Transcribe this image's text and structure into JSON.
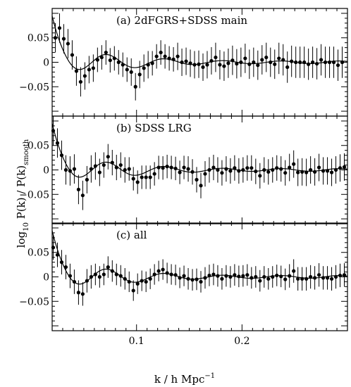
{
  "figure": {
    "xlabel": "k / h Mpc",
    "xlabel_sup": "−1",
    "ylabel": "log",
    "ylabel_sub1": "10",
    "ylabel_mid": " P(k) / P(k)",
    "ylabel_sub2": "smooth"
  },
  "chart_data": [
    {
      "type": "scatter",
      "title": "(a) 2dFGRS+SDSS main",
      "xlim": [
        0.02,
        0.3
      ],
      "ylim": [
        -0.11,
        0.11
      ],
      "x_ticks": [
        0.1,
        0.2
      ],
      "x_tick_labels": [
        "0.1",
        "0.2"
      ],
      "y_ticks": [
        0.05,
        0,
        -0.05
      ],
      "y_tick_labels": [
        "0.05",
        "0",
        "−0.05"
      ],
      "series": [
        {
          "x": [
            0.023,
            0.027,
            0.031,
            0.035,
            0.039,
            0.043,
            0.047,
            0.051,
            0.055,
            0.059,
            0.063,
            0.067,
            0.071,
            0.075,
            0.079,
            0.083,
            0.087,
            0.091,
            0.095,
            0.099,
            0.103,
            0.107,
            0.111,
            0.115,
            0.119,
            0.123,
            0.127,
            0.131,
            0.135,
            0.139,
            0.143,
            0.147,
            0.151,
            0.155,
            0.159,
            0.163,
            0.167,
            0.171,
            0.175,
            0.179,
            0.183,
            0.187,
            0.191,
            0.195,
            0.199,
            0.203,
            0.207,
            0.211,
            0.215,
            0.219,
            0.223,
            0.227,
            0.231,
            0.235,
            0.239,
            0.243,
            0.247,
            0.251,
            0.255,
            0.259,
            0.263,
            0.267,
            0.271,
            0.275,
            0.279,
            0.283,
            0.287,
            0.291,
            0.295
          ],
          "y": [
            0.05,
            0.07,
            0.048,
            0.038,
            0.015,
            -0.018,
            -0.04,
            -0.028,
            -0.015,
            -0.012,
            0.005,
            0.01,
            0.02,
            0.004,
            0.008,
            0.0,
            -0.005,
            -0.015,
            -0.02,
            -0.05,
            -0.025,
            -0.012,
            -0.005,
            -0.002,
            0.012,
            0.02,
            0.012,
            0.008,
            0.006,
            0.012,
            0.0,
            0.002,
            -0.002,
            -0.005,
            -0.004,
            -0.01,
            -0.005,
            0.003,
            0.01,
            -0.005,
            -0.008,
            -0.002,
            0.004,
            -0.003,
            0.0,
            0.008,
            -0.004,
            0.0,
            -0.006,
            0.005,
            0.01,
            0.0,
            -0.004,
            0.008,
            0.005,
            -0.01,
            0.002,
            0.0,
            0.0,
            0.0,
            -0.004,
            0.0,
            -0.003,
            0.005,
            0.0,
            0.0,
            0.0,
            -0.006,
            0.0
          ],
          "err": [
            0.03,
            0.03,
            0.03,
            0.03,
            0.03,
            0.03,
            0.03,
            0.028,
            0.028,
            0.028,
            0.025,
            0.025,
            0.025,
            0.025,
            0.025,
            0.025,
            0.025,
            0.025,
            0.028,
            0.028,
            0.028,
            0.028,
            0.028,
            0.025,
            0.025,
            0.025,
            0.025,
            0.025,
            0.025,
            0.028,
            0.028,
            0.028,
            0.028,
            0.028,
            0.028,
            0.028,
            0.028,
            0.028,
            0.03,
            0.03,
            0.03,
            0.03,
            0.03,
            0.03,
            0.03,
            0.03,
            0.03,
            0.03,
            0.03,
            0.03,
            0.03,
            0.03,
            0.03,
            0.032,
            0.032,
            0.032,
            0.032,
            0.032,
            0.032,
            0.032,
            0.032,
            0.032,
            0.032,
            0.032,
            0.032,
            0.032,
            0.032,
            0.032,
            0.032
          ]
        }
      ]
    },
    {
      "type": "scatter",
      "title": "(b) SDSS LRG",
      "xlim": [
        0.02,
        0.3
      ],
      "ylim": [
        -0.11,
        0.11
      ],
      "x_ticks": [
        0.1,
        0.2
      ],
      "x_tick_labels": [
        "0.1",
        "0.2"
      ],
      "y_ticks": [
        0.05,
        0,
        -0.05
      ],
      "y_tick_labels": [
        "0.05",
        "0",
        "−0.05"
      ],
      "series": [
        {
          "x": [
            0.021,
            0.025,
            0.029,
            0.033,
            0.037,
            0.041,
            0.045,
            0.049,
            0.053,
            0.057,
            0.061,
            0.065,
            0.069,
            0.073,
            0.077,
            0.081,
            0.085,
            0.089,
            0.093,
            0.097,
            0.101,
            0.105,
            0.109,
            0.113,
            0.117,
            0.121,
            0.125,
            0.129,
            0.133,
            0.137,
            0.141,
            0.145,
            0.149,
            0.153,
            0.157,
            0.161,
            0.165,
            0.169,
            0.173,
            0.177,
            0.181,
            0.185,
            0.189,
            0.193,
            0.197,
            0.201,
            0.205,
            0.209,
            0.213,
            0.217,
            0.221,
            0.225,
            0.229,
            0.233,
            0.237,
            0.241,
            0.245,
            0.249,
            0.253,
            0.257,
            0.261,
            0.265,
            0.269,
            0.273,
            0.277,
            0.281,
            0.285,
            0.289,
            0.293,
            0.297
          ],
          "y": [
            0.08,
            0.055,
            0.03,
            0.0,
            -0.002,
            0.002,
            -0.04,
            -0.052,
            -0.02,
            0.002,
            0.008,
            -0.005,
            0.01,
            0.027,
            0.015,
            0.005,
            0.01,
            0.0,
            0.002,
            -0.018,
            -0.025,
            -0.015,
            -0.015,
            -0.015,
            -0.008,
            0.005,
            0.004,
            0.007,
            0.005,
            0.003,
            -0.005,
            0.005,
            0.002,
            -0.004,
            -0.02,
            -0.032,
            -0.008,
            0.0,
            0.005,
            0.0,
            -0.006,
            0.002,
            -0.002,
            0.004,
            -0.002,
            0.0,
            0.004,
            0.004,
            -0.003,
            -0.012,
            0.0,
            -0.004,
            0.0,
            0.004,
            0.002,
            -0.006,
            0.005,
            0.012,
            -0.005,
            -0.004,
            -0.005,
            0.0,
            -0.004,
            0.005,
            -0.002,
            -0.002,
            -0.005,
            0.0,
            0.004,
            0.006
          ],
          "err": [
            0.03,
            0.03,
            0.03,
            0.03,
            0.03,
            0.03,
            0.03,
            0.03,
            0.028,
            0.028,
            0.028,
            0.028,
            0.026,
            0.026,
            0.026,
            0.026,
            0.026,
            0.026,
            0.024,
            0.024,
            0.024,
            0.024,
            0.024,
            0.024,
            0.024,
            0.024,
            0.024,
            0.024,
            0.024,
            0.024,
            0.024,
            0.024,
            0.026,
            0.026,
            0.026,
            0.026,
            0.026,
            0.026,
            0.026,
            0.026,
            0.026,
            0.026,
            0.026,
            0.026,
            0.026,
            0.026,
            0.026,
            0.026,
            0.026,
            0.026,
            0.026,
            0.026,
            0.026,
            0.026,
            0.026,
            0.026,
            0.028,
            0.028,
            0.028,
            0.028,
            0.028,
            0.028,
            0.028,
            0.028,
            0.028,
            0.028,
            0.028,
            0.028,
            0.028,
            0.028
          ]
        }
      ]
    },
    {
      "type": "scatter",
      "title": "(c) all",
      "xlim": [
        0.02,
        0.3
      ],
      "ylim": [
        -0.11,
        0.11
      ],
      "x_ticks": [
        0.1,
        0.2
      ],
      "x_tick_labels": [
        "0.1",
        "0.2"
      ],
      "y_ticks": [
        0.05,
        0,
        -0.05
      ],
      "y_tick_labels": [
        "0.05",
        "0",
        "−0.05"
      ],
      "series": [
        {
          "x": [
            0.021,
            0.025,
            0.029,
            0.033,
            0.037,
            0.041,
            0.045,
            0.049,
            0.053,
            0.057,
            0.061,
            0.065,
            0.069,
            0.073,
            0.077,
            0.081,
            0.085,
            0.089,
            0.093,
            0.097,
            0.101,
            0.105,
            0.109,
            0.113,
            0.117,
            0.121,
            0.125,
            0.129,
            0.133,
            0.137,
            0.141,
            0.145,
            0.149,
            0.153,
            0.157,
            0.161,
            0.165,
            0.169,
            0.173,
            0.177,
            0.181,
            0.185,
            0.189,
            0.193,
            0.197,
            0.201,
            0.205,
            0.209,
            0.213,
            0.217,
            0.221,
            0.225,
            0.229,
            0.233,
            0.237,
            0.241,
            0.245,
            0.249,
            0.253,
            0.257,
            0.261,
            0.265,
            0.269,
            0.273,
            0.277,
            0.281,
            0.285,
            0.289,
            0.293,
            0.297
          ],
          "y": [
            0.06,
            0.045,
            0.03,
            0.02,
            0.002,
            -0.01,
            -0.032,
            -0.035,
            -0.008,
            0.0,
            0.005,
            0.0,
            0.005,
            0.02,
            0.012,
            0.005,
            0.002,
            -0.004,
            -0.01,
            -0.028,
            -0.014,
            -0.008,
            -0.01,
            -0.004,
            0.005,
            0.012,
            0.015,
            0.008,
            0.005,
            0.004,
            -0.002,
            0.002,
            -0.004,
            -0.006,
            -0.005,
            -0.01,
            -0.002,
            0.003,
            0.005,
            0.002,
            -0.004,
            0.002,
            0.0,
            0.004,
            0.001,
            0.002,
            0.004,
            -0.002,
            0.0,
            -0.008,
            0.0,
            -0.004,
            0.0,
            0.003,
            0.001,
            -0.005,
            0.002,
            0.012,
            -0.004,
            -0.004,
            -0.004,
            0.0,
            -0.002,
            0.004,
            -0.002,
            -0.002,
            -0.004,
            0.0,
            0.003,
            0.004
          ],
          "err": [
            0.025,
            0.025,
            0.025,
            0.025,
            0.025,
            0.025,
            0.025,
            0.024,
            0.024,
            0.024,
            0.022,
            0.022,
            0.022,
            0.022,
            0.022,
            0.022,
            0.022,
            0.022,
            0.021,
            0.021,
            0.021,
            0.021,
            0.021,
            0.021,
            0.021,
            0.021,
            0.021,
            0.021,
            0.021,
            0.021,
            0.021,
            0.021,
            0.022,
            0.022,
            0.022,
            0.022,
            0.022,
            0.022,
            0.022,
            0.022,
            0.022,
            0.022,
            0.022,
            0.022,
            0.022,
            0.022,
            0.022,
            0.022,
            0.022,
            0.022,
            0.022,
            0.022,
            0.022,
            0.022,
            0.022,
            0.022,
            0.024,
            0.024,
            0.024,
            0.024,
            0.024,
            0.024,
            0.024,
            0.024,
            0.024,
            0.024,
            0.024,
            0.024,
            0.024,
            0.024
          ]
        }
      ]
    }
  ]
}
